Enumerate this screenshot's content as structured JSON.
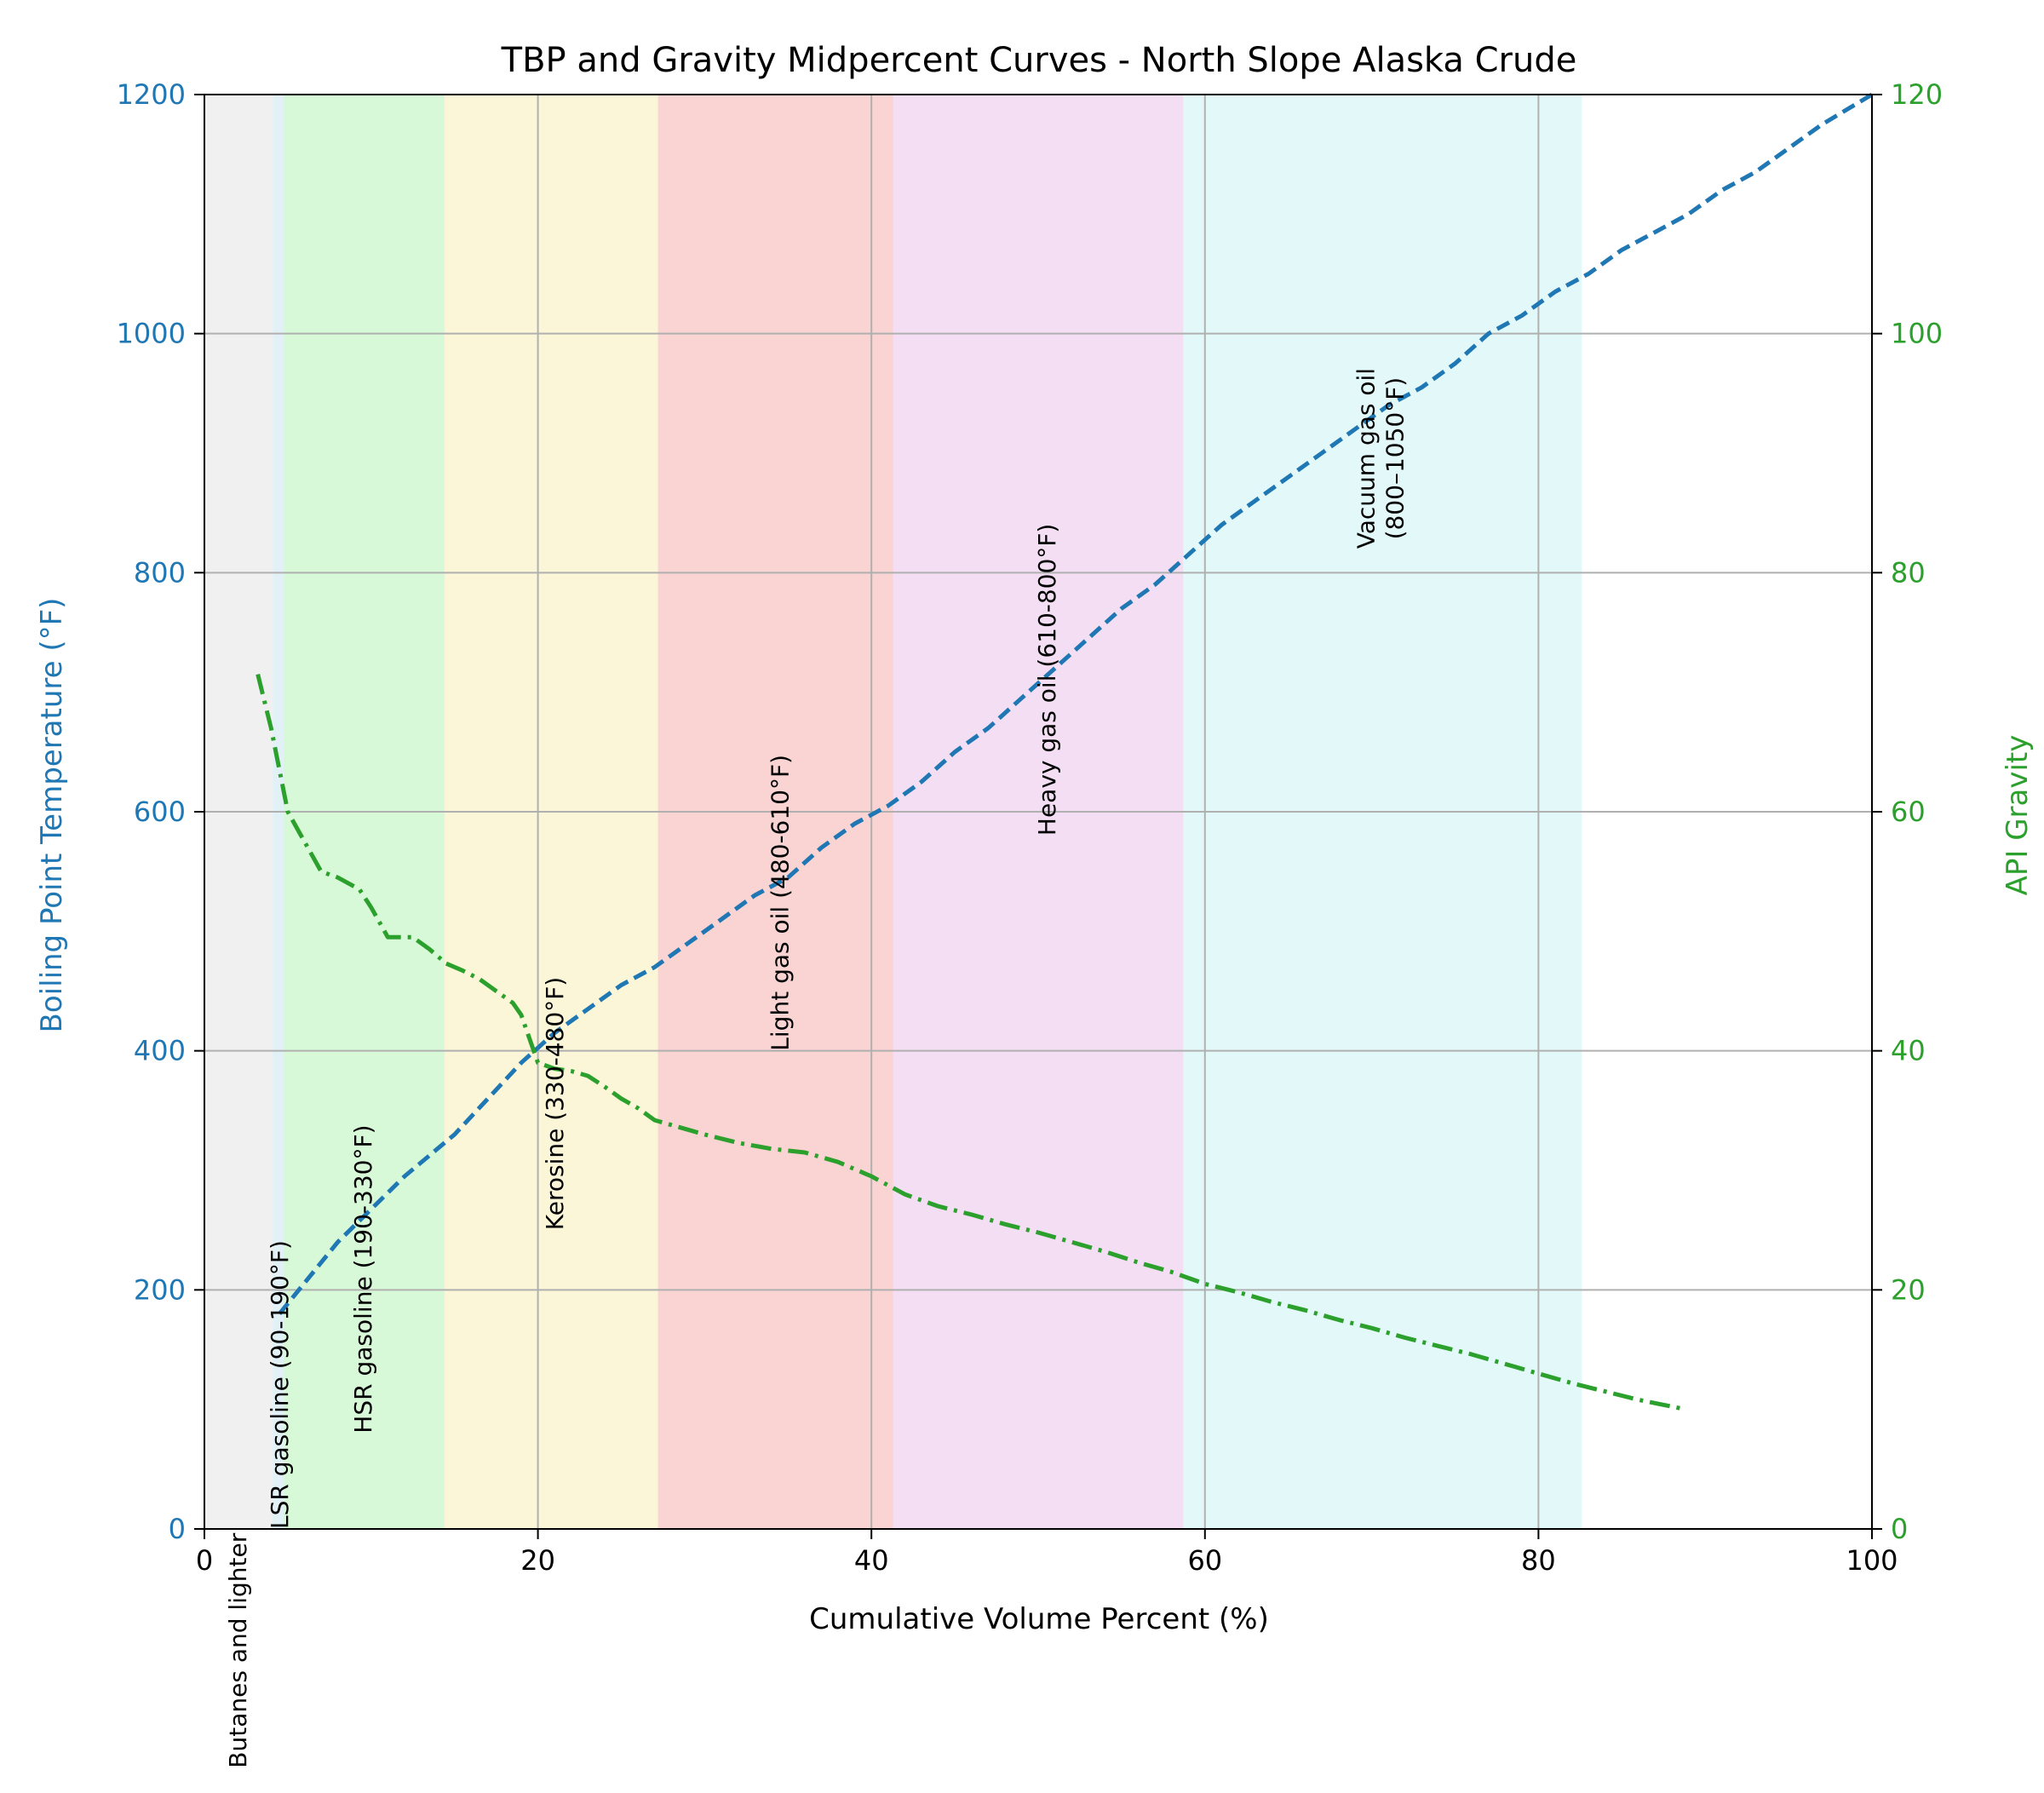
{
  "chart_data": {
    "type": "line",
    "title": "TBP and Gravity Midpercent Curves - North Slope Alaska Crude",
    "xlabel": "Cumulative Volume Percent (%)",
    "ylabel_left": "Boiling Point Temperature (°F)",
    "ylabel_right": "API Gravity",
    "xlim": [
      0,
      100
    ],
    "ylim_left": [
      0,
      1200
    ],
    "ylim_right": [
      0,
      120
    ],
    "x_ticks": [
      0,
      20,
      40,
      60,
      80,
      100
    ],
    "y_left_ticks": [
      0,
      200,
      400,
      600,
      800,
      1000,
      1200
    ],
    "y_right_ticks": [
      0,
      20,
      40,
      60,
      80,
      100,
      120
    ],
    "grid": true,
    "colors": {
      "tbp": "#1f77b4",
      "gravity": "#2ca02c",
      "axis_text": "#000000"
    },
    "fractions": [
      {
        "name": "Butanes and lighter",
        "start": 0,
        "end": 4.1,
        "color": "#d3d3d3",
        "label_x": 2,
        "label_y": -200
      },
      {
        "name": "LSR gasoline (90-190°F)",
        "start": 4.1,
        "end": 4.8,
        "color": "#add8e6",
        "label_x": 4.5,
        "label_y": 0
      },
      {
        "name": "HSR gasoline (190-330°F)",
        "start": 4.8,
        "end": 14.4,
        "color": "#90ee90",
        "label_x": 9.5,
        "label_y": 80
      },
      {
        "name": "Kerosine (330-480°F)",
        "start": 14.4,
        "end": 27.2,
        "color": "#f0e68c",
        "label_x": 21,
        "label_y": 250
      },
      {
        "name": "Light gas oil (480-610°F)",
        "start": 27.2,
        "end": 41.3,
        "color": "#f08080",
        "label_x": 34.5,
        "label_y": 400
      },
      {
        "name": "Heavy gas oil (610-800°F)",
        "start": 41.3,
        "end": 58.7,
        "color": "#dda0dd",
        "label_x": 50.5,
        "label_y": 580
      },
      {
        "name": "Vacuum gas oil\n(800–1050°F)",
        "start": 58.7,
        "end": 82.6,
        "color": "#afeeee",
        "label_x": 70.5,
        "label_y": 820
      }
    ],
    "series": [
      {
        "name": "TBP",
        "axis": "left",
        "x": [
          4.5,
          8,
          12,
          15,
          17,
          19,
          21,
          23,
          25,
          27,
          29,
          31,
          33,
          35,
          37,
          39,
          41,
          43,
          45,
          47,
          49,
          51,
          53,
          55,
          57,
          59,
          61,
          63,
          65,
          67,
          69,
          71,
          73,
          75,
          77,
          79,
          81,
          83,
          85,
          87,
          89,
          91,
          93,
          95,
          97,
          100
        ],
        "values": [
          180,
          240,
          295,
          330,
          360,
          390,
          415,
          435,
          455,
          470,
          490,
          510,
          530,
          545,
          570,
          590,
          605,
          625,
          650,
          670,
          695,
          720,
          745,
          770,
          790,
          815,
          840,
          860,
          880,
          900,
          920,
          940,
          955,
          975,
          1000,
          1015,
          1035,
          1050,
          1070,
          1085,
          1100,
          1120,
          1135,
          1155,
          1175,
          1200
        ]
      },
      {
        "name": "API Gravity",
        "axis": "right",
        "x": [
          3.2,
          4,
          5,
          6,
          7,
          8,
          9.3,
          10,
          11,
          12.5,
          13.5,
          14.5,
          15.5,
          16.5,
          17.5,
          18.5,
          19,
          19.5,
          20,
          21,
          22,
          23,
          24,
          25,
          26,
          27,
          28,
          30,
          32,
          34,
          36,
          38,
          40,
          42,
          44,
          46,
          48,
          50,
          52,
          54,
          56,
          58,
          60,
          62,
          64,
          66,
          68,
          70,
          72,
          74,
          76,
          78,
          80,
          82,
          84,
          86,
          88.5
        ],
        "values": [
          71.5,
          67,
          60,
          57.5,
          55,
          54.5,
          53.5,
          52,
          49.5,
          49.5,
          48.5,
          47.3,
          46.7,
          46,
          45,
          44,
          43,
          41,
          39,
          38.5,
          38.3,
          37.9,
          37,
          36,
          35.2,
          34.2,
          33.8,
          33,
          32.3,
          31.8,
          31.5,
          30.7,
          29.5,
          28,
          27,
          26.3,
          25.5,
          24.8,
          24,
          23.2,
          22.3,
          21.5,
          20.5,
          19.8,
          19,
          18.3,
          17.5,
          16.8,
          16,
          15.3,
          14.6,
          13.8,
          13,
          12.2,
          11.5,
          10.8,
          10.1
        ]
      }
    ]
  }
}
